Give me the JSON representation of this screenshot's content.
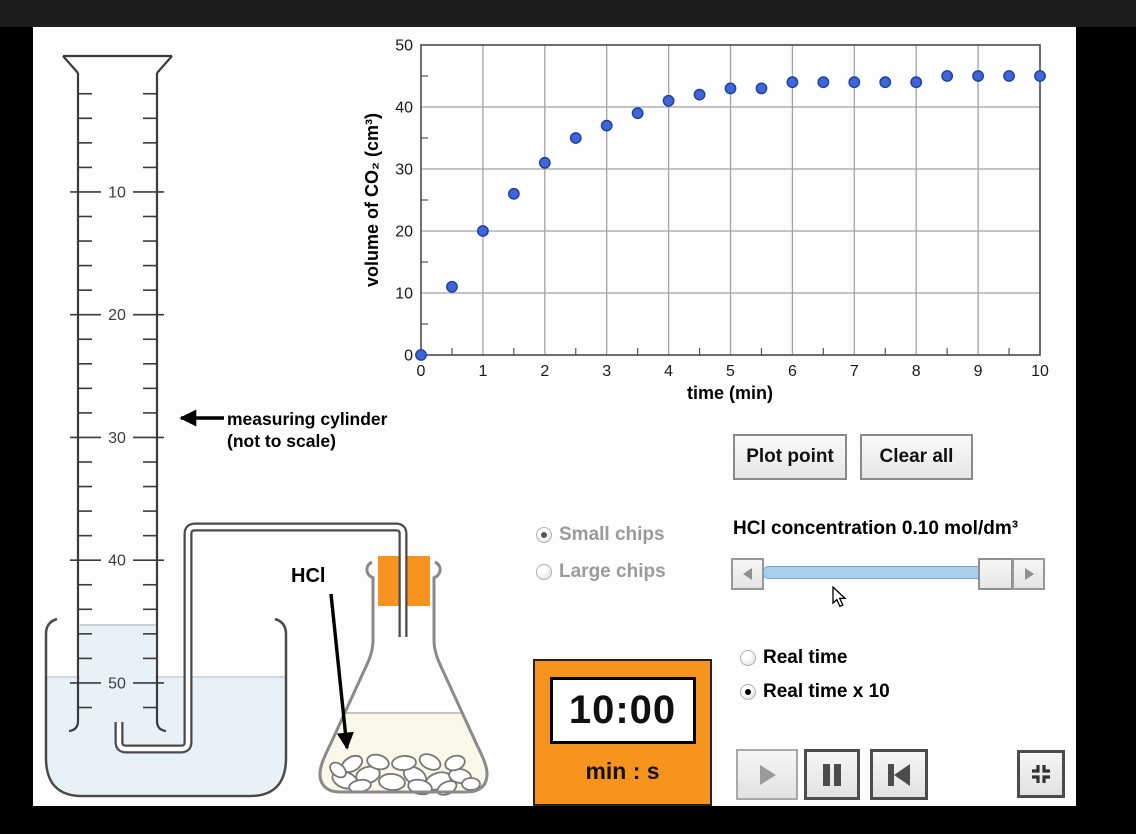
{
  "chart_data": {
    "type": "scatter",
    "title": "",
    "xlabel": "time (min)",
    "ylabel": "volume of CO₂ (cm³)",
    "xlim": [
      0,
      10
    ],
    "ylim": [
      0,
      50
    ],
    "x_ticks": [
      0,
      1,
      2,
      3,
      4,
      5,
      6,
      7,
      8,
      9,
      10
    ],
    "y_ticks": [
      0,
      10,
      20,
      30,
      40,
      50
    ],
    "grid": true,
    "legend": "none",
    "point_color": "#3f65d9",
    "point_edge_color": "#1e3f9e",
    "points": [
      [
        0,
        0
      ],
      [
        0.5,
        11
      ],
      [
        1,
        20
      ],
      [
        1.5,
        26
      ],
      [
        2,
        31
      ],
      [
        2.5,
        35
      ],
      [
        3,
        37
      ],
      [
        3.5,
        39
      ],
      [
        4,
        41
      ],
      [
        4.5,
        42
      ],
      [
        5,
        43
      ],
      [
        5.5,
        43
      ],
      [
        6,
        44
      ],
      [
        6.5,
        44
      ],
      [
        7,
        44
      ],
      [
        7.5,
        44
      ],
      [
        8,
        44
      ],
      [
        8.5,
        45
      ],
      [
        9,
        45
      ],
      [
        9.5,
        45
      ],
      [
        10,
        45
      ]
    ]
  },
  "apparatus": {
    "cylinder_labels": [
      "10",
      "20",
      "30",
      "40",
      "50"
    ],
    "caption_line1": "measuring cylinder",
    "caption_line2": "(not to scale)",
    "flask_label": "HCl",
    "bung_color": "#f8931f",
    "water_color": "#e9f1f8",
    "liquid_color": "#faf8e9"
  },
  "controls": {
    "plot_point": "Plot point",
    "clear_all": "Clear all",
    "chip_options": [
      {
        "label": "Small chips",
        "selected": true
      },
      {
        "label": "Large chips",
        "selected": false
      }
    ],
    "chip_label_color": "#9b9b9b",
    "concentration_label": "HCl concentration 0.10 mol/dm³",
    "time_options": [
      {
        "label": "Real time",
        "selected": false
      },
      {
        "label": "Real time x 10",
        "selected": true
      }
    ],
    "timer": {
      "value": "10:00",
      "unit_label": "min : s",
      "color": "#f7941e"
    },
    "playback": [
      {
        "name": "play",
        "enabled": false
      },
      {
        "name": "pause",
        "enabled": true
      },
      {
        "name": "rewind",
        "enabled": true
      }
    ]
  }
}
